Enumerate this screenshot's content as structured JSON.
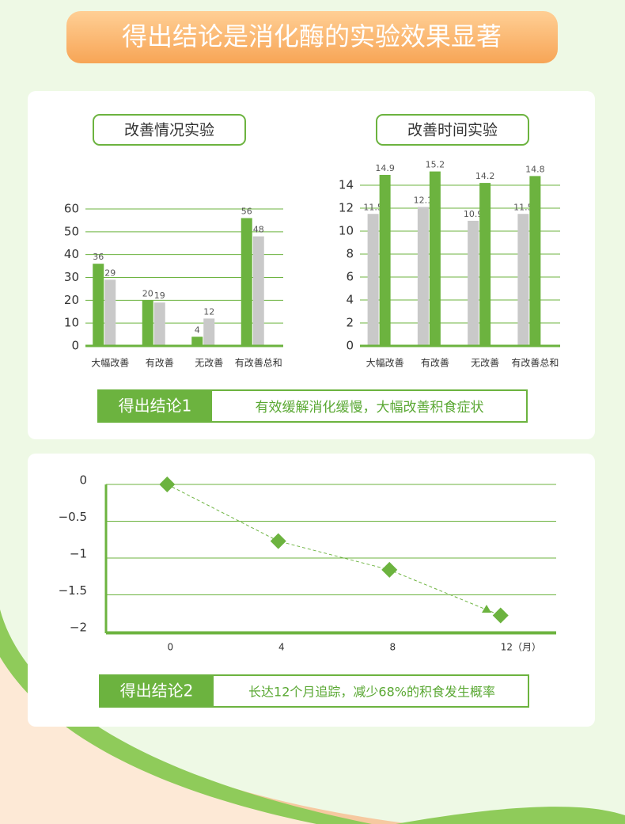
{
  "title": "得出结论是消化酶的实验效果显著",
  "chart_data": [
    {
      "type": "bar",
      "title": "改善情况实验",
      "categories": [
        "大幅改善",
        "有改善",
        "无改善",
        "有改善总和"
      ],
      "series": [
        {
          "color": "#6cb33f",
          "values": [
            36,
            20,
            4,
            56
          ]
        },
        {
          "color": "#c9c9c9",
          "values": [
            29,
            19,
            12,
            48
          ]
        }
      ],
      "ylim": [
        0,
        60
      ],
      "yticks": [
        0,
        10,
        20,
        30,
        40,
        50,
        60
      ],
      "grid": true
    },
    {
      "type": "bar",
      "title": "改善时间实验",
      "categories": [
        "大幅改善",
        "有改善",
        "无改善",
        "有改善总和"
      ],
      "series": [
        {
          "color": "#c9c9c9",
          "values": [
            11.5,
            12.1,
            10.9,
            11.5
          ]
        },
        {
          "color": "#6cb33f",
          "values": [
            14.9,
            15.2,
            14.2,
            14.8
          ]
        }
      ],
      "ylim": [
        0,
        15.5
      ],
      "yticks": [
        0,
        2,
        4,
        6,
        8,
        10,
        12,
        14
      ],
      "grid": true
    },
    {
      "type": "line",
      "color": "#6cb33f",
      "x": [
        0,
        4,
        8,
        12
      ],
      "values": [
        0,
        -0.77,
        -1.16,
        -1.78
      ],
      "xlim": [
        -2.2,
        14
      ],
      "xticks": [
        0,
        4,
        8,
        {
          "value": 12,
          "label": "12（月）"
        }
      ],
      "ylim": [
        -2,
        0
      ],
      "yticks": [
        0,
        {
          "value": -0.5,
          "label": "−0.5"
        },
        {
          "value": -1,
          "label": "−1"
        },
        {
          "value": -1.5,
          "label": "−1.5"
        },
        {
          "value": -2,
          "label": "−2"
        }
      ],
      "grid": true
    }
  ],
  "conclusion1": {
    "label": "得出结论1",
    "text": "有效缓解消化缓慢，大幅改善积食症状"
  },
  "conclusion2": {
    "label": "得出结论2",
    "text": "长达12个月追踪，减少68%的积食发生概率"
  }
}
